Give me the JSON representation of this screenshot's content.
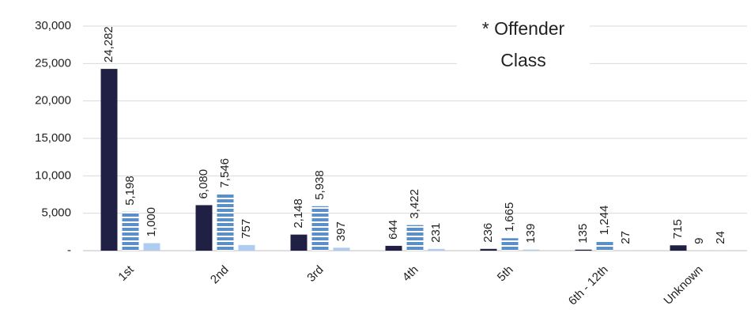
{
  "chart_data": {
    "type": "bar",
    "annotation": [
      "* Offender",
      "Class"
    ],
    "categories": [
      "1st",
      "2nd",
      "3rd",
      "4th",
      "5th",
      "6th - 12th",
      "Unknown"
    ],
    "series": [
      {
        "color": "#1f2044",
        "values": [
          24282,
          6080,
          2148,
          644,
          236,
          135,
          715
        ],
        "value_labels": [
          "24,282",
          "6,080",
          "2,148",
          "644",
          "236",
          "135",
          "715"
        ]
      },
      {
        "color": "#5b8fc7",
        "pattern": "horizontal-stripes",
        "values": [
          5198,
          7546,
          5938,
          3422,
          1665,
          1244,
          9
        ],
        "value_labels": [
          "5,198",
          "7,546",
          "5,938",
          "3,422",
          "1,665",
          "1,244",
          "9"
        ]
      },
      {
        "color": "#aecbf0",
        "values": [
          1000,
          757,
          397,
          231,
          139,
          27,
          24
        ],
        "value_labels": [
          "1,000",
          "757",
          "397",
          "231",
          "139",
          "27",
          "24"
        ]
      }
    ],
    "ylim": [
      0,
      30000
    ],
    "yticks": [
      {
        "value": 0,
        "label": "-"
      },
      {
        "value": 5000,
        "label": "5,000"
      },
      {
        "value": 10000,
        "label": "10,000"
      },
      {
        "value": 15000,
        "label": "15,000"
      },
      {
        "value": 20000,
        "label": "20,000"
      },
      {
        "value": 25000,
        "label": "25,000"
      },
      {
        "value": 30000,
        "label": "30,000"
      }
    ],
    "grid": true
  }
}
